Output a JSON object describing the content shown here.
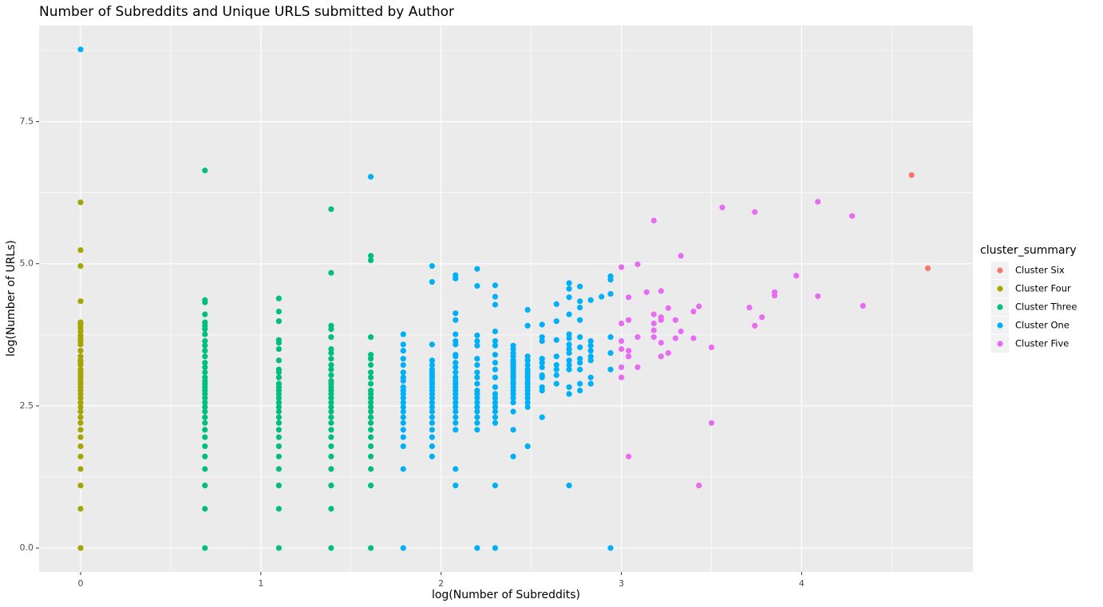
{
  "chart_data": {
    "type": "scatter",
    "title": "Number of Subreddits and Unique URLS submitted by Author",
    "x_label": "log(Number of Subreddits)",
    "y_label": "log(Number of URLs)",
    "legend_title": "cluster_summary",
    "legend_position": "right",
    "grid": true,
    "xlim": [
      -0.23,
      4.95
    ],
    "ylim": [
      -0.42,
      9.19
    ],
    "xticks": [
      0,
      1,
      2,
      3,
      4
    ],
    "yticks": [
      {
        "value": 0,
        "label": "0.0"
      },
      2.5,
      {
        "value": 5,
        "label": "5.0"
      },
      7.5
    ],
    "xminor": [
      0.5,
      1.5,
      2.5,
      3.5,
      4.5
    ],
    "yminor": [
      1.25,
      3.75,
      6.25,
      8.75
    ],
    "series": [
      {
        "name": "Cluster Six",
        "color": "#F8766D",
        "x": [
          4.61,
          4.7
        ],
        "values": [
          6.56,
          4.92
        ]
      },
      {
        "name": "Cluster Four",
        "color": "#A3A500",
        "x": [
          0,
          0,
          0,
          0,
          0,
          0,
          0,
          0,
          0,
          0,
          0,
          0,
          0,
          0,
          0,
          0,
          0,
          0,
          0,
          0,
          0,
          0,
          0,
          0,
          0,
          0,
          0,
          0,
          0,
          0,
          0,
          0,
          0,
          0,
          0,
          0,
          0,
          0,
          0,
          0
        ],
        "values": [
          0,
          0.69,
          1.1,
          1.39,
          1.61,
          1.79,
          1.95,
          2.08,
          2.2,
          2.3,
          2.4,
          2.48,
          2.56,
          2.64,
          2.71,
          2.77,
          2.83,
          2.89,
          2.94,
          3.0,
          3.04,
          3.09,
          3.14,
          3.22,
          3.26,
          3.3,
          3.37,
          3.47,
          3.58,
          3.64,
          3.69,
          3.74,
          3.81,
          3.87,
          3.93,
          3.97,
          4.34,
          4.96,
          5.24,
          6.08
        ]
      },
      {
        "name": "Cluster Three",
        "color": "#00BF7D",
        "x": [
          0.69,
          0.69,
          0.69,
          0.69,
          0.69,
          0.69,
          0.69,
          0.69,
          0.69,
          0.69,
          0.69,
          0.69,
          0.69,
          0.69,
          0.69,
          0.69,
          0.69,
          0.69,
          0.69,
          0.69,
          0.69,
          0.69,
          0.69,
          0.69,
          0.69,
          0.69,
          0.69,
          0.69,
          0.69,
          0.69,
          0.69,
          0.69,
          0.69,
          0.69,
          0.69,
          1.1,
          1.1,
          1.1,
          1.1,
          1.1,
          1.1,
          1.1,
          1.1,
          1.1,
          1.1,
          1.1,
          1.1,
          1.1,
          1.1,
          1.1,
          1.1,
          1.1,
          1.1,
          1.1,
          1.1,
          1.1,
          1.1,
          1.1,
          1.1,
          1.1,
          1.1,
          1.1,
          1.1,
          1.39,
          1.39,
          1.39,
          1.39,
          1.39,
          1.39,
          1.39,
          1.39,
          1.39,
          1.39,
          1.39,
          1.39,
          1.39,
          1.39,
          1.39,
          1.39,
          1.39,
          1.39,
          1.39,
          1.39,
          1.39,
          1.39,
          1.39,
          1.39,
          1.39,
          1.39,
          1.39,
          1.39,
          1.39,
          1.39,
          1.61,
          1.61,
          1.61,
          1.61,
          1.61,
          1.61,
          1.61,
          1.61,
          1.61,
          1.61,
          1.61,
          1.61,
          1.61,
          1.61,
          1.61,
          1.61,
          1.61,
          1.61,
          1.61,
          1.61,
          1.61,
          1.61,
          1.61,
          1.61
        ],
        "values": [
          0,
          0.69,
          1.1,
          1.39,
          1.61,
          1.79,
          1.95,
          2.08,
          2.2,
          2.3,
          2.4,
          2.48,
          2.56,
          2.64,
          2.71,
          2.77,
          2.83,
          2.89,
          2.94,
          3.0,
          3.09,
          3.18,
          3.26,
          3.37,
          3.47,
          3.56,
          3.64,
          3.76,
          3.85,
          3.91,
          3.97,
          4.11,
          4.32,
          4.36,
          6.64,
          0,
          0.69,
          1.1,
          1.39,
          1.61,
          1.79,
          1.95,
          2.08,
          2.2,
          2.3,
          2.4,
          2.48,
          2.56,
          2.64,
          2.71,
          2.77,
          2.83,
          2.89,
          3.0,
          3.09,
          3.14,
          3.3,
          3.5,
          3.61,
          3.66,
          3.99,
          4.16,
          4.39,
          0,
          0.69,
          1.1,
          1.39,
          1.61,
          1.79,
          1.95,
          2.08,
          2.2,
          2.3,
          2.4,
          2.48,
          2.56,
          2.64,
          2.71,
          2.77,
          2.83,
          2.89,
          2.94,
          3.04,
          3.14,
          3.22,
          3.33,
          3.43,
          3.5,
          3.71,
          3.85,
          3.91,
          4.84,
          5.96,
          0,
          1.1,
          1.39,
          1.61,
          1.79,
          1.95,
          2.08,
          2.2,
          2.3,
          2.4,
          2.48,
          2.56,
          2.64,
          2.71,
          2.77,
          2.89,
          3.0,
          3.09,
          3.22,
          3.33,
          3.4,
          3.71,
          5.06,
          5.14
        ]
      },
      {
        "name": "Cluster One",
        "color": "#00B0F6",
        "x": [
          0,
          1.61,
          1.79,
          1.79,
          1.79,
          1.79,
          1.79,
          1.79,
          1.79,
          1.79,
          1.79,
          1.79,
          1.79,
          1.79,
          1.79,
          1.79,
          1.79,
          1.79,
          1.79,
          1.79,
          1.79,
          1.79,
          1.79,
          1.79,
          1.95,
          1.95,
          1.95,
          1.95,
          1.95,
          1.95,
          1.95,
          1.95,
          1.95,
          1.95,
          1.95,
          1.95,
          1.95,
          1.95,
          1.95,
          1.95,
          1.95,
          1.95,
          1.95,
          1.95,
          1.95,
          1.95,
          1.95,
          1.95,
          2.08,
          2.08,
          2.08,
          2.08,
          2.08,
          2.08,
          2.08,
          2.08,
          2.08,
          2.08,
          2.08,
          2.08,
          2.08,
          2.08,
          2.08,
          2.08,
          2.08,
          2.08,
          2.08,
          2.08,
          2.08,
          2.08,
          2.08,
          2.08,
          2.08,
          2.08,
          2.08,
          2.2,
          2.2,
          2.2,
          2.2,
          2.2,
          2.2,
          2.2,
          2.2,
          2.2,
          2.2,
          2.2,
          2.2,
          2.2,
          2.2,
          2.2,
          2.2,
          2.2,
          2.2,
          2.2,
          2.2,
          2.3,
          2.3,
          2.3,
          2.3,
          2.3,
          2.3,
          2.3,
          2.3,
          2.3,
          2.3,
          2.3,
          2.3,
          2.3,
          2.3,
          2.3,
          2.3,
          2.3,
          2.3,
          2.3,
          2.3,
          2.4,
          2.4,
          2.4,
          2.4,
          2.4,
          2.4,
          2.4,
          2.4,
          2.4,
          2.4,
          2.4,
          2.4,
          2.4,
          2.4,
          2.4,
          2.4,
          2.4,
          2.4,
          2.4,
          2.4,
          2.4,
          2.4,
          2.48,
          2.48,
          2.48,
          2.48,
          2.48,
          2.48,
          2.48,
          2.48,
          2.48,
          2.48,
          2.48,
          2.48,
          2.48,
          2.48,
          2.48,
          2.48,
          2.48,
          2.48,
          2.56,
          2.56,
          2.56,
          2.56,
          2.56,
          2.56,
          2.56,
          2.56,
          2.56,
          2.56,
          2.56,
          2.64,
          2.64,
          2.64,
          2.64,
          2.64,
          2.64,
          2.64,
          2.64,
          2.71,
          2.71,
          2.71,
          2.71,
          2.71,
          2.71,
          2.71,
          2.71,
          2.71,
          2.71,
          2.71,
          2.71,
          2.71,
          2.71,
          2.71,
          2.77,
          2.77,
          2.77,
          2.77,
          2.77,
          2.77,
          2.77,
          2.77,
          2.77,
          2.77,
          2.77,
          2.83,
          2.83,
          2.83,
          2.83,
          2.83,
          2.83,
          2.83,
          2.83,
          2.89,
          2.94,
          2.94,
          2.94,
          2.94,
          2.94,
          2.94,
          2.94
        ],
        "values": [
          8.77,
          6.53,
          0,
          1.39,
          1.79,
          1.95,
          2.08,
          2.2,
          2.3,
          2.4,
          2.48,
          2.56,
          2.64,
          2.71,
          2.77,
          2.83,
          2.94,
          3.0,
          3.09,
          3.22,
          3.33,
          3.47,
          3.58,
          3.76,
          1.61,
          1.79,
          1.95,
          2.08,
          2.2,
          2.3,
          2.4,
          2.48,
          2.56,
          2.64,
          2.71,
          2.77,
          2.83,
          2.89,
          2.94,
          3.0,
          3.04,
          3.09,
          3.14,
          3.22,
          3.3,
          3.58,
          4.68,
          4.96,
          1.1,
          1.39,
          2.08,
          2.2,
          2.3,
          2.4,
          2.48,
          2.56,
          2.64,
          2.71,
          2.77,
          2.83,
          2.89,
          2.94,
          3.0,
          3.09,
          3.18,
          3.26,
          3.37,
          3.4,
          3.58,
          3.64,
          3.76,
          4.01,
          4.13,
          4.74,
          4.8,
          0,
          2.08,
          2.2,
          2.3,
          2.4,
          2.48,
          2.56,
          2.64,
          2.71,
          2.77,
          2.89,
          3.0,
          3.09,
          3.22,
          3.33,
          3.56,
          3.64,
          3.74,
          4.61,
          4.91,
          0,
          1.1,
          2.2,
          2.3,
          2.4,
          2.48,
          2.56,
          2.64,
          2.71,
          2.83,
          3.0,
          3.14,
          3.26,
          3.4,
          3.56,
          3.64,
          3.81,
          4.28,
          4.42,
          4.62,
          1.61,
          2.08,
          2.4,
          2.56,
          2.64,
          2.71,
          2.77,
          2.83,
          2.89,
          2.94,
          3.0,
          3.04,
          3.09,
          3.14,
          3.18,
          3.22,
          3.26,
          3.3,
          3.37,
          3.43,
          3.5,
          3.56,
          1.79,
          2.48,
          2.56,
          2.64,
          2.71,
          2.77,
          2.83,
          2.89,
          2.94,
          3.0,
          3.04,
          3.09,
          3.14,
          3.22,
          3.3,
          3.37,
          3.91,
          4.19,
          2.3,
          2.77,
          2.83,
          3.0,
          3.04,
          3.18,
          3.26,
          3.33,
          3.64,
          3.71,
          3.93,
          2.89,
          3.04,
          3.14,
          3.22,
          3.37,
          3.66,
          3.99,
          4.29,
          1.1,
          2.71,
          2.83,
          3.14,
          3.22,
          3.3,
          3.43,
          3.5,
          3.58,
          3.69,
          3.76,
          4.11,
          4.41,
          4.56,
          4.66,
          2.77,
          2.89,
          3.14,
          3.26,
          3.33,
          3.53,
          3.71,
          4.01,
          4.23,
          4.34,
          4.6,
          2.89,
          3.0,
          3.3,
          3.37,
          3.47,
          3.56,
          3.64,
          4.36,
          4.42,
          0,
          3.14,
          3.43,
          3.71,
          4.47,
          4.72,
          4.78
        ]
      },
      {
        "name": "Cluster Five",
        "color": "#E76BF3",
        "x": [
          3.0,
          3.0,
          3.0,
          3.0,
          3.0,
          3.0,
          3.04,
          3.04,
          3.04,
          3.04,
          3.04,
          3.09,
          3.09,
          3.09,
          3.14,
          3.18,
          3.18,
          3.18,
          3.18,
          3.18,
          3.22,
          3.22,
          3.22,
          3.22,
          3.22,
          3.26,
          3.26,
          3.3,
          3.3,
          3.33,
          3.33,
          3.4,
          3.4,
          3.43,
          3.43,
          3.5,
          3.5,
          3.56,
          3.71,
          3.74,
          3.74,
          3.78,
          3.85,
          3.85,
          3.97,
          4.09,
          4.09,
          4.28,
          4.34
        ],
        "values": [
          3.0,
          3.18,
          3.5,
          3.64,
          3.95,
          4.94,
          1.61,
          3.37,
          3.47,
          4.01,
          4.41,
          3.18,
          3.71,
          4.99,
          4.5,
          3.71,
          3.83,
          3.95,
          4.11,
          5.76,
          3.37,
          3.61,
          4.01,
          4.06,
          4.52,
          3.43,
          4.22,
          3.69,
          4.01,
          3.81,
          5.14,
          3.69,
          4.16,
          1.1,
          4.25,
          2.2,
          3.53,
          5.99,
          4.23,
          3.91,
          5.91,
          4.06,
          4.44,
          4.5,
          4.79,
          4.43,
          6.09,
          5.84,
          4.26
        ]
      }
    ]
  }
}
